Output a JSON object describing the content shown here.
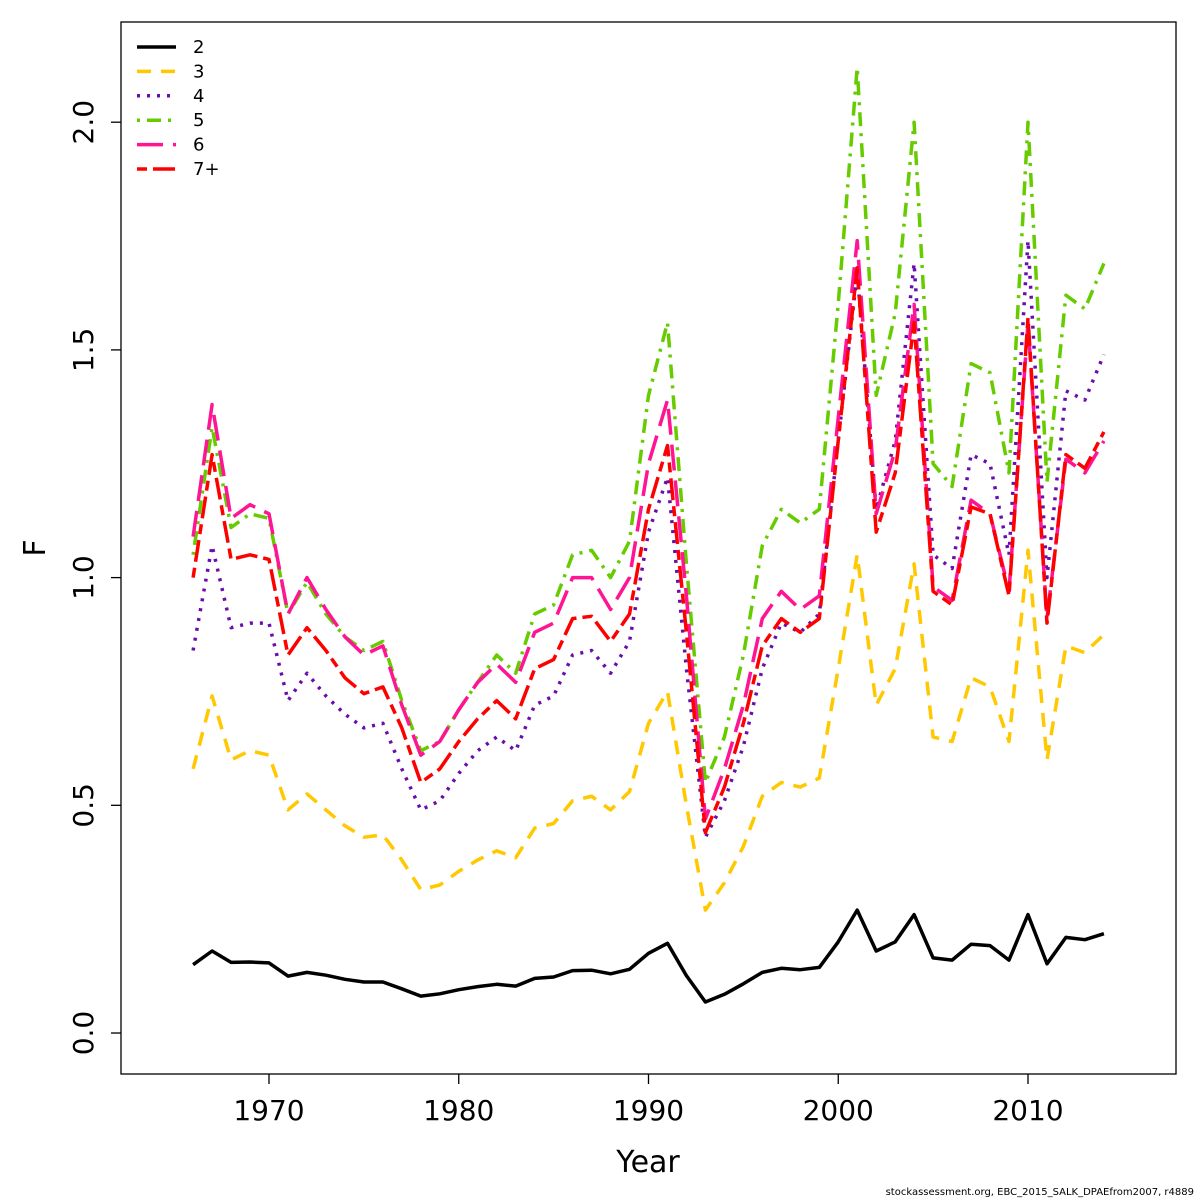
{
  "chart_data": {
    "type": "line",
    "xlabel": "Year",
    "ylabel": "F",
    "xlim": [
      1962.2,
      2017.8
    ],
    "ylim": [
      -0.09,
      2.22
    ],
    "xticks": [
      1970,
      1980,
      1990,
      2000,
      2010
    ],
    "yticks": [
      0.0,
      0.5,
      1.0,
      1.5,
      2.0
    ],
    "ytick_labels": [
      "0.0",
      "0.5",
      "1.0",
      "1.5",
      "2.0"
    ],
    "legend_position": "top-left",
    "x": [
      1966,
      1967,
      1968,
      1969,
      1970,
      1971,
      1972,
      1973,
      1974,
      1975,
      1976,
      1977,
      1978,
      1979,
      1980,
      1981,
      1982,
      1983,
      1984,
      1985,
      1986,
      1987,
      1988,
      1989,
      1990,
      1991,
      1992,
      1993,
      1994,
      1995,
      1996,
      1997,
      1998,
      1999,
      2000,
      2001,
      2002,
      2003,
      2004,
      2005,
      2006,
      2007,
      2008,
      2009,
      2010,
      2011,
      2012,
      2013,
      2014
    ],
    "series": [
      {
        "name": "2",
        "color": "#000000",
        "dash": "solid",
        "values": [
          0.15,
          0.18,
          0.155,
          0.156,
          0.154,
          0.125,
          0.133,
          0.127,
          0.118,
          0.112,
          0.112,
          0.097,
          0.081,
          0.086,
          0.095,
          0.102,
          0.107,
          0.103,
          0.12,
          0.123,
          0.137,
          0.138,
          0.13,
          0.14,
          0.175,
          0.197,
          0.126,
          0.068,
          0.085,
          0.108,
          0.133,
          0.142,
          0.139,
          0.144,
          0.2,
          0.27,
          0.18,
          0.2,
          0.26,
          0.165,
          0.16,
          0.195,
          0.192,
          0.16,
          0.26,
          0.152,
          0.21,
          0.205,
          0.218
        ]
      },
      {
        "name": "3",
        "color": "#FFC800",
        "dash": "dashed",
        "values": [
          0.58,
          0.74,
          0.6,
          0.62,
          0.61,
          0.49,
          0.525,
          0.49,
          0.455,
          0.43,
          0.435,
          0.38,
          0.315,
          0.325,
          0.355,
          0.38,
          0.4,
          0.385,
          0.45,
          0.46,
          0.51,
          0.52,
          0.49,
          0.53,
          0.68,
          0.75,
          0.5,
          0.27,
          0.33,
          0.41,
          0.52,
          0.55,
          0.54,
          0.56,
          0.8,
          1.05,
          0.72,
          0.8,
          1.03,
          0.65,
          0.64,
          0.78,
          0.76,
          0.64,
          1.06,
          0.6,
          0.85,
          0.835,
          0.875
        ]
      },
      {
        "name": "4",
        "color": "#6A0DAD",
        "dash": "dotted",
        "values": [
          0.84,
          1.07,
          0.89,
          0.9,
          0.9,
          0.73,
          0.79,
          0.74,
          0.7,
          0.67,
          0.68,
          0.58,
          0.49,
          0.51,
          0.57,
          0.62,
          0.65,
          0.62,
          0.72,
          0.74,
          0.83,
          0.84,
          0.79,
          0.86,
          1.1,
          1.22,
          0.8,
          0.43,
          0.51,
          0.63,
          0.8,
          0.9,
          0.88,
          0.92,
          1.3,
          1.67,
          1.15,
          1.3,
          1.69,
          1.05,
          1.02,
          1.27,
          1.25,
          1.05,
          1.74,
          1.0,
          1.41,
          1.39,
          1.49
        ]
      },
      {
        "name": "5",
        "color": "#66CC00",
        "dash": "dotdash",
        "values": [
          1.05,
          1.33,
          1.11,
          1.14,
          1.13,
          0.92,
          0.99,
          0.92,
          0.87,
          0.84,
          0.86,
          0.73,
          0.62,
          0.64,
          0.71,
          0.77,
          0.83,
          0.79,
          0.92,
          0.94,
          1.05,
          1.06,
          1.0,
          1.08,
          1.4,
          1.56,
          1.03,
          0.55,
          0.65,
          0.83,
          1.07,
          1.15,
          1.12,
          1.15,
          1.6,
          2.12,
          1.4,
          1.58,
          2.0,
          1.25,
          1.2,
          1.47,
          1.45,
          1.23,
          2.0,
          1.21,
          1.62,
          1.59,
          1.69
        ]
      },
      {
        "name": "6",
        "color": "#FF1493",
        "dash": "longdash",
        "values": [
          1.09,
          1.38,
          1.13,
          1.16,
          1.14,
          0.92,
          1.0,
          0.93,
          0.87,
          0.83,
          0.85,
          0.72,
          0.61,
          0.64,
          0.71,
          0.77,
          0.81,
          0.77,
          0.88,
          0.9,
          1.0,
          1.0,
          0.93,
          1.0,
          1.25,
          1.39,
          0.96,
          0.47,
          0.58,
          0.72,
          0.91,
          0.97,
          0.93,
          0.96,
          1.35,
          1.74,
          1.14,
          1.28,
          1.6,
          0.98,
          0.95,
          1.17,
          1.14,
          0.97,
          1.56,
          0.91,
          1.26,
          1.23,
          1.3
        ]
      },
      {
        "name": "7+",
        "color": "#FF0000",
        "dash": "twodash",
        "values": [
          1.0,
          1.27,
          1.04,
          1.05,
          1.04,
          0.83,
          0.89,
          0.84,
          0.78,
          0.745,
          0.76,
          0.67,
          0.55,
          0.58,
          0.64,
          0.69,
          0.73,
          0.69,
          0.8,
          0.82,
          0.91,
          0.915,
          0.86,
          0.92,
          1.15,
          1.29,
          0.88,
          0.44,
          0.54,
          0.68,
          0.85,
          0.91,
          0.88,
          0.91,
          1.3,
          1.68,
          1.1,
          1.23,
          1.56,
          0.97,
          0.94,
          1.155,
          1.14,
          0.96,
          1.57,
          0.9,
          1.27,
          1.24,
          1.32
        ]
      }
    ]
  },
  "footer_note": "stockassessment.org, EBC_2015_SALK_DPAEfrom2007, r4889"
}
